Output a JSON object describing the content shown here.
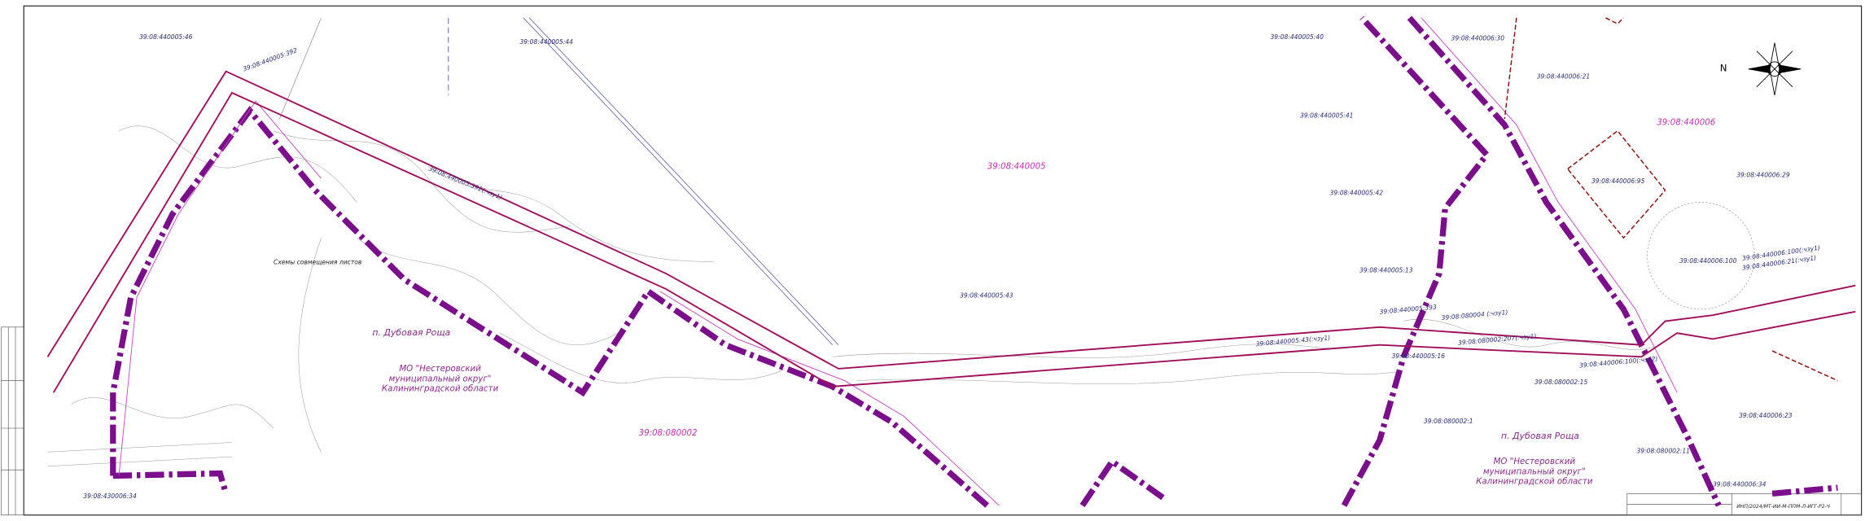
{
  "map": {
    "parcel_numbers": [
      "39:08:440005:46",
      "39:08:440005:44",
      "39:08:440005:392",
      "39:08:440005:40",
      "39:08:440006:30",
      "39:08:440006:21",
      "39:08:440005:41",
      "39:08:440005:42",
      "39:08:440006:95",
      "39:08:440006:29",
      "39:08:440005:43",
      "39:08:440005:13",
      "39:08:440006:100",
      "39:08:440006:100(:чзу1)",
      "39:08:440006:21(:чзу1)",
      "39:08:440005:43(:чзу1)",
      "39:08:440005:393",
      "39:08:080004 (:чзу1)",
      "39:08:080002:207(:чзу1)",
      "39:08:440005:16",
      "39:08:440006:100(:чзу2)",
      "39:08:080002:15",
      "39:08:080002:1",
      "39:08:440006:23",
      "39:08:080002:11",
      "39:08:440006:34",
      "39:08:430006:34",
      "39:08:440005:392(:чзу1)"
    ],
    "quarter_numbers": [
      "39:08:440005",
      "39:08:440006",
      "39:08:080002"
    ],
    "settlements": [
      "п. Дубовая Роща",
      "п. Дубовая Роща"
    ],
    "municipalities": [
      [
        "МО \"Нестеровский",
        "муниципальный округ\"",
        "Калининградской области"
      ],
      [
        "МО \"Нестеровский",
        "муниципальный округ\"",
        "Калининградской области"
      ]
    ],
    "sheet_scheme_note": "Схемы совмещения листов",
    "compass_label": "N",
    "stamp_code": "ИНП/2024/МТ-ИИ-М-ППМ-Л-ИГГ-Р2-Ч"
  }
}
